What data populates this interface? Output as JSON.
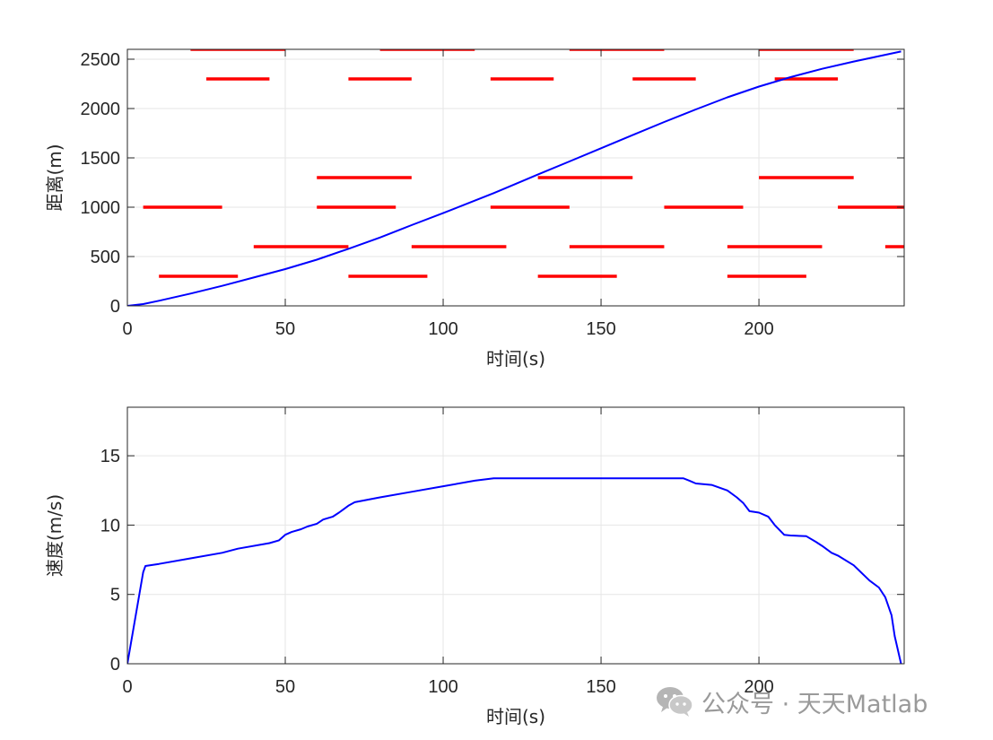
{
  "chart_data": [
    {
      "type": "line",
      "xlabel": "时间(s)",
      "ylabel": "距离(m)",
      "xlim": [
        0,
        246
      ],
      "ylim": [
        0,
        2600
      ],
      "xticks": [
        0,
        50,
        100,
        150,
        200
      ],
      "yticks": [
        0,
        500,
        1000,
        1500,
        2000,
        2500
      ],
      "grid": true,
      "series": [
        {
          "color": "#0000ff",
          "x": [
            0,
            5,
            10,
            20,
            30,
            40,
            50,
            60,
            70,
            80,
            90,
            100,
            110,
            116,
            120,
            130,
            140,
            150,
            160,
            170,
            180,
            190,
            200,
            210,
            220,
            230,
            240,
            245
          ],
          "y": [
            0,
            18,
            52,
            125,
            203,
            287,
            373,
            468,
            578,
            693,
            818,
            940,
            1066,
            1143,
            1196,
            1331,
            1464,
            1597,
            1731,
            1864,
            1991,
            2114,
            2223,
            2318,
            2403,
            2476,
            2545,
            2578
          ]
        }
      ],
      "segments": {
        "color": "#ff0000",
        "items": [
          {
            "x0": 20,
            "x1": 50,
            "y": 2600
          },
          {
            "x0": 80,
            "x1": 110,
            "y": 2600
          },
          {
            "x0": 140,
            "x1": 170,
            "y": 2600
          },
          {
            "x0": 200,
            "x1": 230,
            "y": 2600
          },
          {
            "x0": 25,
            "x1": 45,
            "y": 2300
          },
          {
            "x0": 70,
            "x1": 90,
            "y": 2300
          },
          {
            "x0": 115,
            "x1": 135,
            "y": 2300
          },
          {
            "x0": 160,
            "x1": 180,
            "y": 2300
          },
          {
            "x0": 205,
            "x1": 225,
            "y": 2300
          },
          {
            "x0": 60,
            "x1": 90,
            "y": 1300
          },
          {
            "x0": 130,
            "x1": 160,
            "y": 1300
          },
          {
            "x0": 200,
            "x1": 230,
            "y": 1300
          },
          {
            "x0": 5,
            "x1": 30,
            "y": 1000
          },
          {
            "x0": 60,
            "x1": 85,
            "y": 1000
          },
          {
            "x0": 115,
            "x1": 140,
            "y": 1000
          },
          {
            "x0": 170,
            "x1": 195,
            "y": 1000
          },
          {
            "x0": 225,
            "x1": 250,
            "y": 1000
          },
          {
            "x0": 40,
            "x1": 70,
            "y": 600
          },
          {
            "x0": 90,
            "x1": 120,
            "y": 600
          },
          {
            "x0": 140,
            "x1": 170,
            "y": 600
          },
          {
            "x0": 190,
            "x1": 220,
            "y": 600
          },
          {
            "x0": 240,
            "x1": 270,
            "y": 600
          },
          {
            "x0": 10,
            "x1": 35,
            "y": 300
          },
          {
            "x0": 70,
            "x1": 95,
            "y": 300
          },
          {
            "x0": 130,
            "x1": 155,
            "y": 300
          },
          {
            "x0": 190,
            "x1": 215,
            "y": 300
          }
        ]
      }
    },
    {
      "type": "line",
      "xlabel": "时间(s)",
      "ylabel": "速度(m/s)",
      "xlim": [
        0,
        246
      ],
      "ylim": [
        0,
        18.5
      ],
      "xticks": [
        0,
        50,
        100,
        150,
        200
      ],
      "yticks": [
        0,
        5,
        10,
        15
      ],
      "grid": true,
      "series": [
        {
          "color": "#0000ff",
          "x": [
            0,
            5,
            5.7,
            10,
            20,
            30,
            35,
            45,
            48,
            50,
            52,
            55,
            57,
            60,
            62,
            65,
            67,
            70,
            72,
            80,
            90,
            100,
            110,
            116,
            120,
            130,
            140,
            150,
            160,
            170,
            176,
            178,
            180,
            185,
            190,
            193,
            195,
            197,
            200,
            203,
            205,
            208,
            210,
            215,
            218,
            220,
            223,
            225,
            230,
            235,
            238,
            240,
            242,
            243,
            245
          ],
          "y": [
            0,
            6.6,
            7.05,
            7.2,
            7.6,
            8.0,
            8.3,
            8.7,
            8.9,
            9.3,
            9.5,
            9.7,
            9.9,
            10.1,
            10.4,
            10.6,
            10.9,
            11.4,
            11.65,
            12.0,
            12.4,
            12.8,
            13.2,
            13.38,
            13.38,
            13.38,
            13.38,
            13.38,
            13.38,
            13.38,
            13.38,
            13.2,
            13.0,
            12.9,
            12.5,
            12.0,
            11.6,
            11.0,
            10.9,
            10.6,
            10.0,
            9.3,
            9.25,
            9.2,
            8.8,
            8.5,
            8.0,
            7.8,
            7.1,
            6.0,
            5.5,
            4.8,
            3.5,
            2.0,
            0
          ]
        }
      ]
    }
  ],
  "watermark": {
    "text": "公众号 · 天天Matlab",
    "icon": "wechat-icon"
  }
}
